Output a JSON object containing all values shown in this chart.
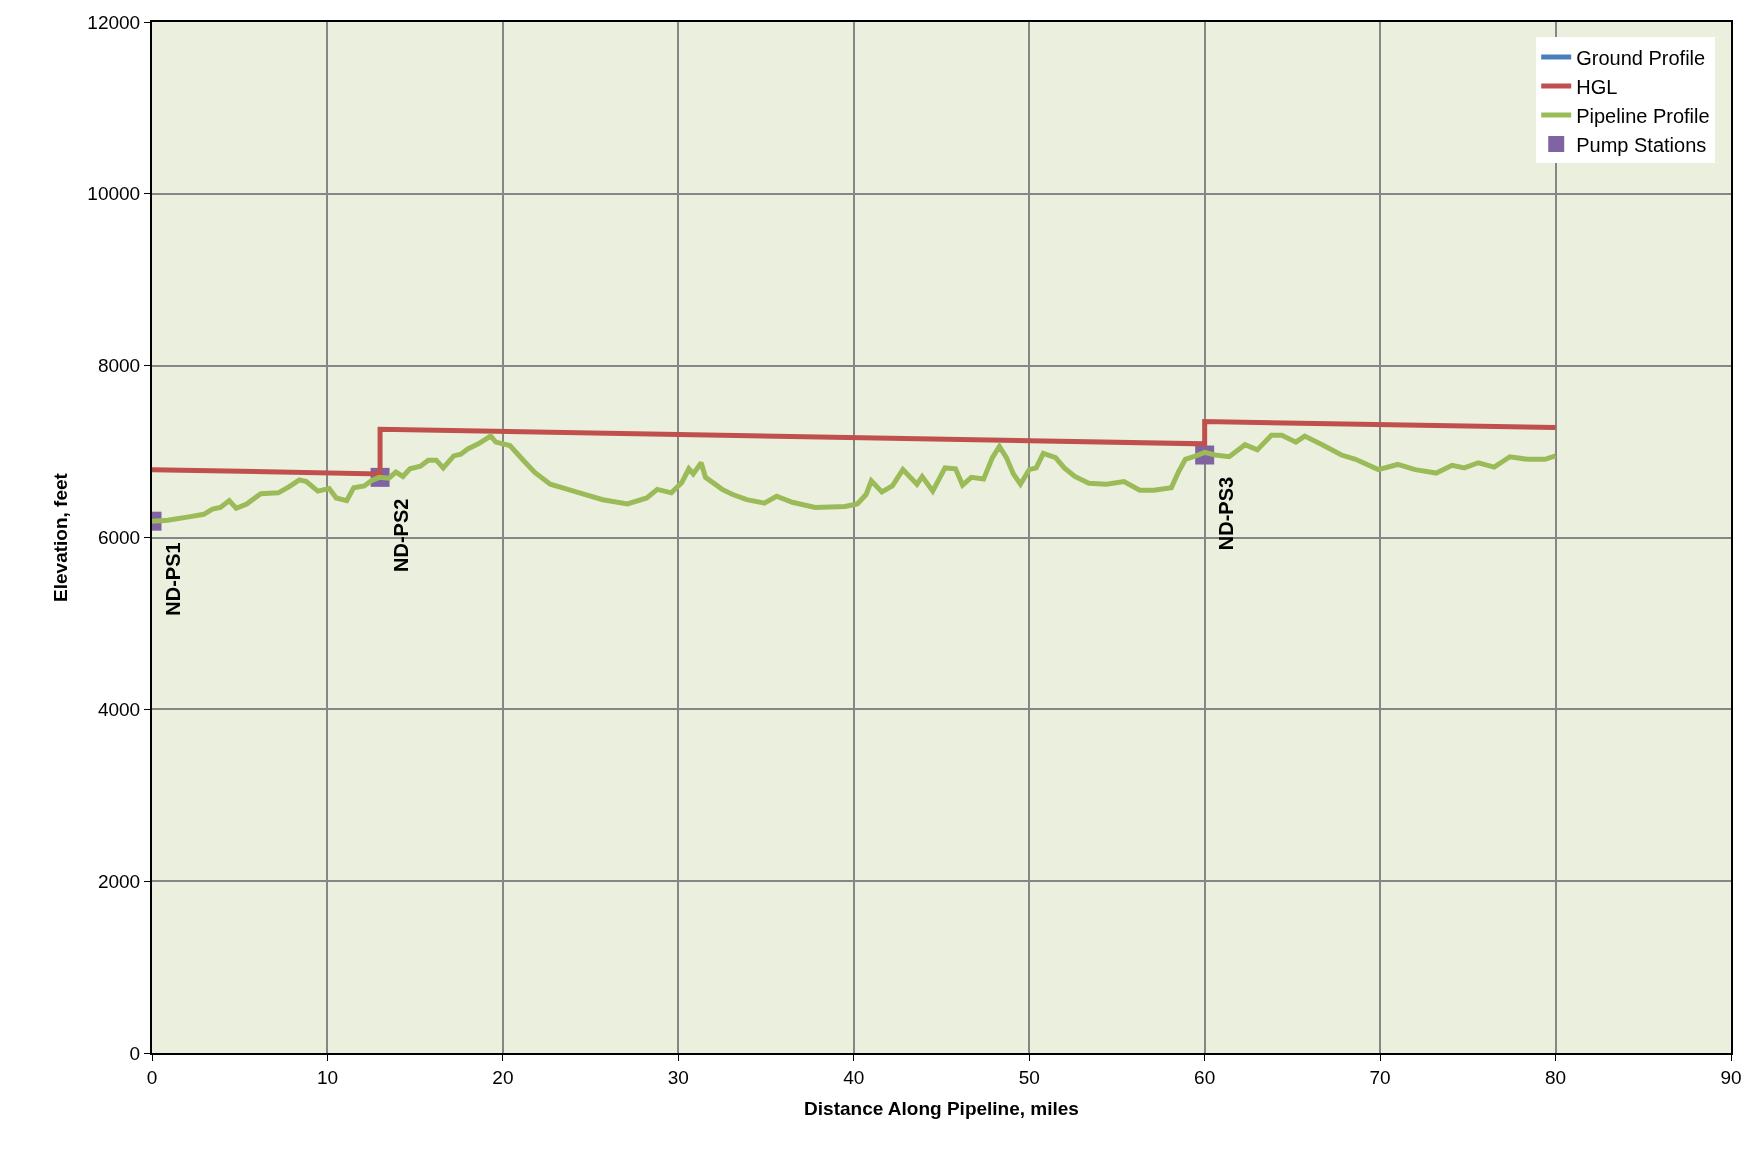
{
  "chart_data": {
    "type": "line",
    "xlabel": "Distance Along Pipeline, miles",
    "ylabel": "Elevation, feet",
    "xlim": [
      0,
      90
    ],
    "xticks": [
      0,
      10,
      20,
      30,
      40,
      50,
      60,
      70,
      80,
      90
    ],
    "ylim": [
      0,
      12000
    ],
    "yticks": [
      0,
      2000,
      4000,
      6000,
      8000,
      10000,
      12000
    ],
    "grid": true,
    "legend": "top right",
    "line_style": "solid",
    "series": [
      {
        "name": "Ground Profile",
        "color": "#4a7ebb"
      },
      {
        "name": "HGL",
        "color": "#c0504d",
        "x": [
          0,
          13,
          13,
          60,
          60,
          80
        ],
        "values": [
          6790,
          6740,
          7260,
          7090,
          7350,
          7280
        ]
      },
      {
        "name": "Pipeline Profile",
        "color": "#9bbb59",
        "x": [
          0,
          0.9,
          2.1,
          2.95,
          3.45,
          3.9,
          4.4,
          4.8,
          5.4,
          6.2,
          7.2,
          7.8,
          8.4,
          8.8,
          9.45,
          10.1,
          10.5,
          11.1,
          11.5,
          12.1,
          12.5,
          12.95,
          13.5,
          13.9,
          14.3,
          14.7,
          15.3,
          15.75,
          16.2,
          16.6,
          17.2,
          17.6,
          18.0,
          18.6,
          19.3,
          19.6,
          20.4,
          21.2,
          21.8,
          22.7,
          23.7,
          24.7,
          25.7,
          27.1,
          28.2,
          28.8,
          29.6,
          30.2,
          30.6,
          30.85,
          31.3,
          31.55,
          32.5,
          33.1,
          33.9,
          34.9,
          35.6,
          36.5,
          37.8,
          39.5,
          40.2,
          40.7,
          41.0,
          41.6,
          42.2,
          42.8,
          43.6,
          43.9,
          44.5,
          45.2,
          45.8,
          46.2,
          46.7,
          47.4,
          47.9,
          48.3,
          48.7,
          49.1,
          49.5,
          50.0,
          50.4,
          50.8,
          51.5,
          52.0,
          52.6,
          53.4,
          54.4,
          55.4,
          56.3,
          57.1,
          58.1,
          58.5,
          58.9,
          59.5,
          60.0,
          60.6,
          61.4,
          62.3,
          63.0,
          63.8,
          64.4,
          65.2,
          65.7,
          66.7,
          67.8,
          68.6,
          69.9,
          71.0,
          72.0,
          73.2,
          74.1,
          74.8,
          75.6,
          76.5,
          77.4,
          78.4,
          79.4,
          80.0
        ],
        "values": [
          6190,
          6200,
          6240,
          6270,
          6330,
          6350,
          6430,
          6340,
          6390,
          6510,
          6520,
          6590,
          6670,
          6650,
          6540,
          6570,
          6460,
          6430,
          6580,
          6600,
          6660,
          6700,
          6690,
          6760,
          6710,
          6800,
          6830,
          6900,
          6900,
          6810,
          6950,
          6970,
          7030,
          7090,
          7180,
          7110,
          7070,
          6890,
          6760,
          6620,
          6560,
          6500,
          6440,
          6390,
          6460,
          6560,
          6520,
          6640,
          6800,
          6740,
          6870,
          6700,
          6560,
          6500,
          6440,
          6400,
          6480,
          6410,
          6350,
          6360,
          6390,
          6500,
          6660,
          6530,
          6600,
          6790,
          6620,
          6710,
          6540,
          6810,
          6800,
          6610,
          6700,
          6680,
          6930,
          7060,
          6930,
          6740,
          6620,
          6790,
          6810,
          6980,
          6930,
          6810,
          6710,
          6630,
          6620,
          6650,
          6550,
          6550,
          6580,
          6760,
          6910,
          6950,
          6990,
          6960,
          6940,
          7080,
          7020,
          7190,
          7190,
          7110,
          7180,
          7080,
          6960,
          6910,
          6790,
          6850,
          6790,
          6750,
          6840,
          6810,
          6870,
          6820,
          6940,
          6910,
          6910,
          6950
        ]
      },
      {
        "name": "Pump Stations",
        "type": "scatter",
        "marker": "square",
        "color": "#8064a2",
        "x": [
          0,
          13,
          60
        ],
        "values": [
          6190,
          6700,
          6960
        ]
      }
    ],
    "annotations": [
      {
        "text": "ND-PS1",
        "x": 0,
        "y": 6190
      },
      {
        "text": "ND-PS2",
        "x": 13,
        "y": 6700
      },
      {
        "text": "ND-PS3",
        "x": 60,
        "y": 6960
      }
    ]
  }
}
